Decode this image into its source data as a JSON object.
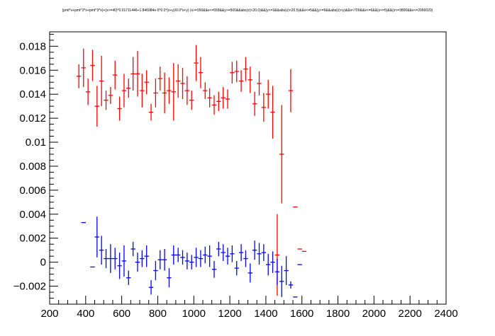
{
  "chart_data": {
    "type": "scatter",
    "title": "(pmt*x+pmt^2*x+pmt^3*x)+(x>=40)*0.01711446+1.846984e-5*0.0*(x+y)/0.0*x+y) (x>=350&&x<=558&&y>=500&&abs(z)<20.0)&&(y<=3&&abs(z)<20.5)&&x<=5&&(y>=5&&abs(z)<y)&&x<700&&x<=6&&(z<=5)&&(z<=3800&&x<=2056020)",
    "xlim": [
      200,
      2400
    ],
    "ylim": [
      -0.0035,
      0.0192
    ],
    "xticks": [
      200,
      400,
      600,
      800,
      1000,
      1200,
      1400,
      1600,
      1800,
      2000,
      2200,
      2400
    ],
    "yticks": [
      -0.002,
      0,
      0.002,
      0.004,
      0.006,
      0.008,
      0.01,
      0.012,
      0.014,
      0.016,
      0.018
    ],
    "ytick_labels": [
      "−0.002",
      "0",
      "0.002",
      "0.004",
      "0.006",
      "0.008",
      "0.01",
      "0.012",
      "0.014",
      "0.016",
      "0.018"
    ],
    "x_halfwidth": 12.5,
    "series": [
      {
        "color": "#ff0000",
        "points": [
          {
            "x": 362,
            "y": 0.0155,
            "err": 0.001
          },
          {
            "x": 388,
            "y": 0.0162,
            "err": 0.0016
          },
          {
            "x": 413,
            "y": 0.0142,
            "err": 0.0011
          },
          {
            "x": 438,
            "y": 0.0164,
            "err": 0.0013
          },
          {
            "x": 463,
            "y": 0.013,
            "err": 0.0017
          },
          {
            "x": 488,
            "y": 0.0151,
            "err": 0.0021
          },
          {
            "x": 513,
            "y": 0.0135,
            "err": 0.0008
          },
          {
            "x": 538,
            "y": 0.0139,
            "err": 0.0007
          },
          {
            "x": 563,
            "y": 0.0156,
            "err": 0.0012
          },
          {
            "x": 588,
            "y": 0.0128,
            "err": 0.001
          },
          {
            "x": 613,
            "y": 0.0143,
            "err": 0.0014
          },
          {
            "x": 638,
            "y": 0.0145,
            "err": 0.0008
          },
          {
            "x": 663,
            "y": 0.0157,
            "err": 0.0014
          },
          {
            "x": 688,
            "y": 0.0157,
            "err": 0.0019
          },
          {
            "x": 713,
            "y": 0.0143,
            "err": 0.0014
          },
          {
            "x": 738,
            "y": 0.015,
            "err": 0.001
          },
          {
            "x": 763,
            "y": 0.0125,
            "err": 0.0007
          },
          {
            "x": 788,
            "y": 0.0141,
            "err": 0.0012
          },
          {
            "x": 813,
            "y": 0.0153,
            "err": 0.001
          },
          {
            "x": 838,
            "y": 0.0141,
            "err": 0.0017
          },
          {
            "x": 863,
            "y": 0.0143,
            "err": 0.0011
          },
          {
            "x": 888,
            "y": 0.0142,
            "err": 0.0024
          },
          {
            "x": 913,
            "y": 0.0151,
            "err": 0.0014
          },
          {
            "x": 938,
            "y": 0.0149,
            "err": 0.0013
          },
          {
            "x": 963,
            "y": 0.0143,
            "err": 0.0012
          },
          {
            "x": 988,
            "y": 0.0135,
            "err": 0.0008
          },
          {
            "x": 1013,
            "y": 0.0166,
            "err": 0.0015
          },
          {
            "x": 1038,
            "y": 0.0158,
            "err": 0.0013
          },
          {
            "x": 1063,
            "y": 0.0143,
            "err": 0.0007
          },
          {
            "x": 1088,
            "y": 0.0137,
            "err": 0.0008
          },
          {
            "x": 1113,
            "y": 0.0131,
            "err": 0.0008
          },
          {
            "x": 1138,
            "y": 0.0134,
            "err": 0.0008
          },
          {
            "x": 1163,
            "y": 0.0137,
            "err": 0.0009
          },
          {
            "x": 1188,
            "y": 0.0136,
            "err": 0.0008
          },
          {
            "x": 1213,
            "y": 0.0158,
            "err": 0.0009
          },
          {
            "x": 1238,
            "y": 0.0159,
            "err": 0.0009
          },
          {
            "x": 1263,
            "y": 0.0151,
            "err": 0.0009
          },
          {
            "x": 1288,
            "y": 0.0161,
            "err": 0.001
          },
          {
            "x": 1313,
            "y": 0.0152,
            "err": 0.0011
          },
          {
            "x": 1338,
            "y": 0.0132,
            "err": 0.001
          },
          {
            "x": 1363,
            "y": 0.0149,
            "err": 0.001
          },
          {
            "x": 1388,
            "y": 0.0129,
            "err": 0.0012
          },
          {
            "x": 1413,
            "y": 0.014,
            "err": 0.0012
          },
          {
            "x": 1438,
            "y": 0.0125,
            "err": 0.0022
          },
          {
            "x": 1463,
            "y": 0.0006,
            "err": 0.0034
          },
          {
            "x": 1488,
            "y": 0.009,
            "err": 0.0041
          },
          {
            "x": 1538,
            "y": 0.0143,
            "err": 0.0018
          },
          {
            "x": 1563,
            "y": 0.0046,
            "err": 0
          },
          {
            "x": 1588,
            "y": 0.0011,
            "err": 0
          },
          {
            "x": 1613,
            "y": 0.0009,
            "err": 0
          }
        ]
      },
      {
        "color": "#0000ff",
        "points": [
          {
            "x": 388,
            "y": 0.0033,
            "err": 0
          },
          {
            "x": 438,
            "y": -0.0004,
            "err": 0
          },
          {
            "x": 463,
            "y": 0.0021,
            "err": 0.0017
          },
          {
            "x": 488,
            "y": 0.001,
            "err": 0.0012
          },
          {
            "x": 513,
            "y": 0.0003,
            "err": 0.0008
          },
          {
            "x": 538,
            "y": 0.0003,
            "err": 0.0012
          },
          {
            "x": 563,
            "y": 0.0003,
            "err": 0.0009
          },
          {
            "x": 588,
            "y": -0.0003,
            "err": 0.0011
          },
          {
            "x": 613,
            "y": 0.0001,
            "err": 0.0013
          },
          {
            "x": 638,
            "y": -0.0013,
            "err": 0.0006
          },
          {
            "x": 663,
            "y": 0.0011,
            "err": 0.0006
          },
          {
            "x": 688,
            "y": 0.0,
            "err": 0.0008
          },
          {
            "x": 713,
            "y": 0.0003,
            "err": 0.0007
          },
          {
            "x": 738,
            "y": 0.0005,
            "err": 0.0009
          },
          {
            "x": 763,
            "y": -0.0021,
            "err": 0.0006
          },
          {
            "x": 788,
            "y": -0.0007,
            "err": 0.0008
          },
          {
            "x": 813,
            "y": 0.0002,
            "err": 0.0008
          },
          {
            "x": 838,
            "y": 0.0002,
            "err": 0.0009
          },
          {
            "x": 863,
            "y": -0.0013,
            "err": 0.0008
          },
          {
            "x": 888,
            "y": 0.0006,
            "err": 0.0008
          },
          {
            "x": 913,
            "y": 0.0006,
            "err": 0.0006
          },
          {
            "x": 938,
            "y": 0.0004,
            "err": 0.0006
          },
          {
            "x": 963,
            "y": 0.0001,
            "err": 0.0007
          },
          {
            "x": 988,
            "y": 0.0,
            "err": 0.0006
          },
          {
            "x": 1013,
            "y": 0.0004,
            "err": 0.0008
          },
          {
            "x": 1038,
            "y": 0.0003,
            "err": 0.0007
          },
          {
            "x": 1063,
            "y": 0.0006,
            "err": 0.0007
          },
          {
            "x": 1088,
            "y": 0.0005,
            "err": 0.0009
          },
          {
            "x": 1113,
            "y": -0.0006,
            "err": 0.0007
          },
          {
            "x": 1138,
            "y": 0.0011,
            "err": 0.0006
          },
          {
            "x": 1163,
            "y": 0.0008,
            "err": 0.0007
          },
          {
            "x": 1188,
            "y": 0.0005,
            "err": 0.0007
          },
          {
            "x": 1213,
            "y": 0.0007,
            "err": 0.0007
          },
          {
            "x": 1238,
            "y": -0.0005,
            "err": 0.0006
          },
          {
            "x": 1263,
            "y": 0.0008,
            "err": 0.0007
          },
          {
            "x": 1288,
            "y": 0.0003,
            "err": 0.0007
          },
          {
            "x": 1313,
            "y": -0.0009,
            "err": 0.0008
          },
          {
            "x": 1338,
            "y": 0.001,
            "err": 0.0008
          },
          {
            "x": 1363,
            "y": 0.0007,
            "err": 0.0009
          },
          {
            "x": 1388,
            "y": 0.0008,
            "err": 0.0007
          },
          {
            "x": 1413,
            "y": -0.0002,
            "err": 0.0009
          },
          {
            "x": 1438,
            "y": 0.0,
            "err": 0.0009
          },
          {
            "x": 1463,
            "y": -0.0008,
            "err": 0.0011
          },
          {
            "x": 1488,
            "y": -0.0016,
            "err": 0.0013
          },
          {
            "x": 1513,
            "y": -0.0007,
            "err": 0.0012
          },
          {
            "x": 1538,
            "y": -0.0019,
            "err": 0.0003
          },
          {
            "x": 1563,
            "y": -0.0029,
            "err": 0
          },
          {
            "x": 1588,
            "y": -0.0002,
            "err": 0
          }
        ]
      }
    ]
  }
}
